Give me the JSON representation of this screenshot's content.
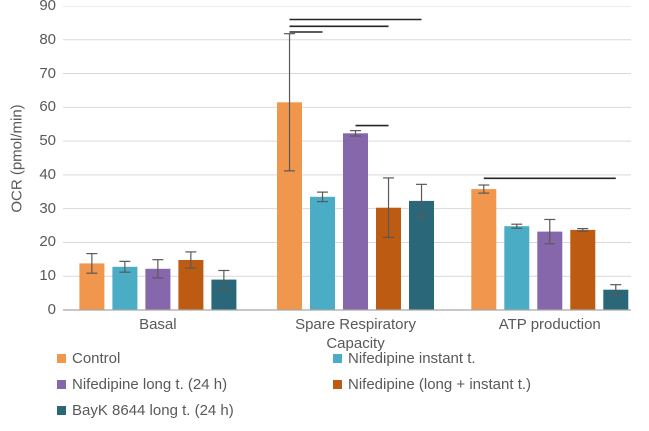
{
  "chart_data": {
    "type": "bar",
    "title": "",
    "xlabel": "",
    "ylabel": "OCR (pmol/min)",
    "ylim": [
      0,
      90
    ],
    "ytick_step": 10,
    "yticks": [
      0,
      10,
      20,
      30,
      40,
      50,
      60,
      70,
      80,
      90
    ],
    "grid": true,
    "legend_position": "bottom",
    "categories": [
      "Basal",
      "Spare Respiratory Capacity",
      "ATP production"
    ],
    "series": [
      {
        "name": "Control",
        "color": "#F0964D",
        "values": [
          13.8,
          61.5,
          35.8
        ],
        "errors": [
          2.9,
          20.3,
          1.2
        ]
      },
      {
        "name": "Nifedipine instant t.",
        "color": "#4BACC6",
        "values": [
          12.8,
          33.5,
          24.8
        ],
        "errors": [
          1.6,
          1.4,
          0.6
        ]
      },
      {
        "name": "Nifedipine long t. (24 h)",
        "color": "#8667AC",
        "values": [
          12.2,
          52.3,
          23.2
        ],
        "errors": [
          2.7,
          0.8,
          3.6
        ]
      },
      {
        "name": "Nifedipine (long + instant t.)",
        "color": "#BE5B12",
        "values": [
          14.8,
          30.3,
          23.7
        ],
        "errors": [
          2.4,
          8.8,
          0.4
        ]
      },
      {
        "name": "BayK 8644 long t. (24 h)",
        "color": "#2A6879",
        "values": [
          9.0,
          32.3,
          6.0
        ],
        "errors": [
          2.7,
          4.9,
          1.5
        ]
      }
    ],
    "significance_lines": [
      {
        "group": 1,
        "from_series": 0,
        "to_series": 4,
        "value": 86.0
      },
      {
        "group": 1,
        "from_series": 0,
        "to_series": 3,
        "value": 84.0
      },
      {
        "group": 1,
        "from_series": 0,
        "to_series": 1,
        "value": 82.3
      },
      {
        "group": 1,
        "from_series": 2,
        "to_series": 3,
        "value": 54.6
      },
      {
        "group": 2,
        "from_series": 0,
        "to_series": 4,
        "value": 39.0
      }
    ],
    "colors": {
      "gridline": "#D9D9D9",
      "axis_line": "#A6A6A6",
      "error_bar": "#595959",
      "significance_line": "#262626",
      "text": "#595959"
    }
  }
}
